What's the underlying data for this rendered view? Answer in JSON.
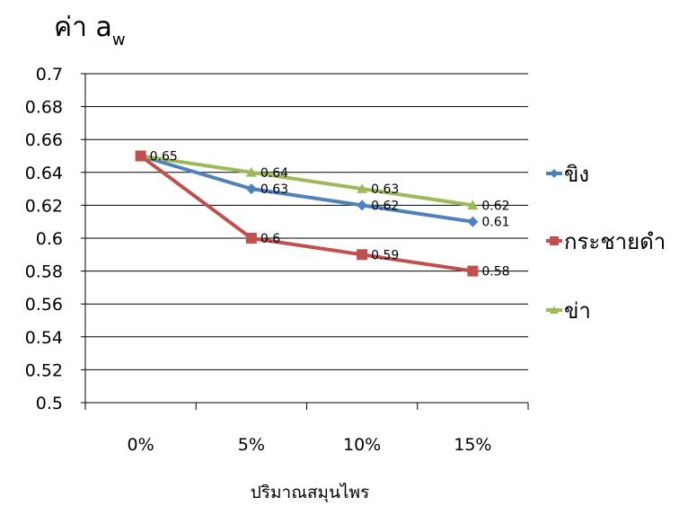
{
  "chart_data": {
    "type": "line",
    "ylabel_main": "ค่า a",
    "ylabel_sub": "w",
    "xlabel": "ปริมาณสมุนไพร",
    "categories": [
      "0%",
      "5%",
      "10%",
      "15%"
    ],
    "ylim": [
      0.5,
      0.7
    ],
    "yticks": [
      "0.5",
      "0.52",
      "0.54",
      "0.56",
      "0.58",
      "0.6",
      "0.62",
      "0.64",
      "0.66",
      "0.68",
      "0.7"
    ],
    "grid": true,
    "legend_position": "right",
    "series": [
      {
        "name": "ขิง",
        "values": [
          0.65,
          0.63,
          0.62,
          0.61
        ],
        "labels": [
          "",
          "0.63",
          "0.62",
          "0.61"
        ],
        "color": "#4F81BD",
        "marker": "diamond"
      },
      {
        "name": "กระชายดำ",
        "values": [
          0.65,
          0.6,
          0.59,
          0.58
        ],
        "labels": [
          "",
          "0.6",
          "0.59",
          "0.58"
        ],
        "color": "#C0504D",
        "marker": "square"
      },
      {
        "name": "ข่า",
        "values": [
          0.65,
          0.64,
          0.63,
          0.62
        ],
        "labels": [
          "0.65",
          "0.64",
          "0.63",
          "0.62"
        ],
        "color": "#9BBB59",
        "marker": "triangle"
      }
    ]
  }
}
